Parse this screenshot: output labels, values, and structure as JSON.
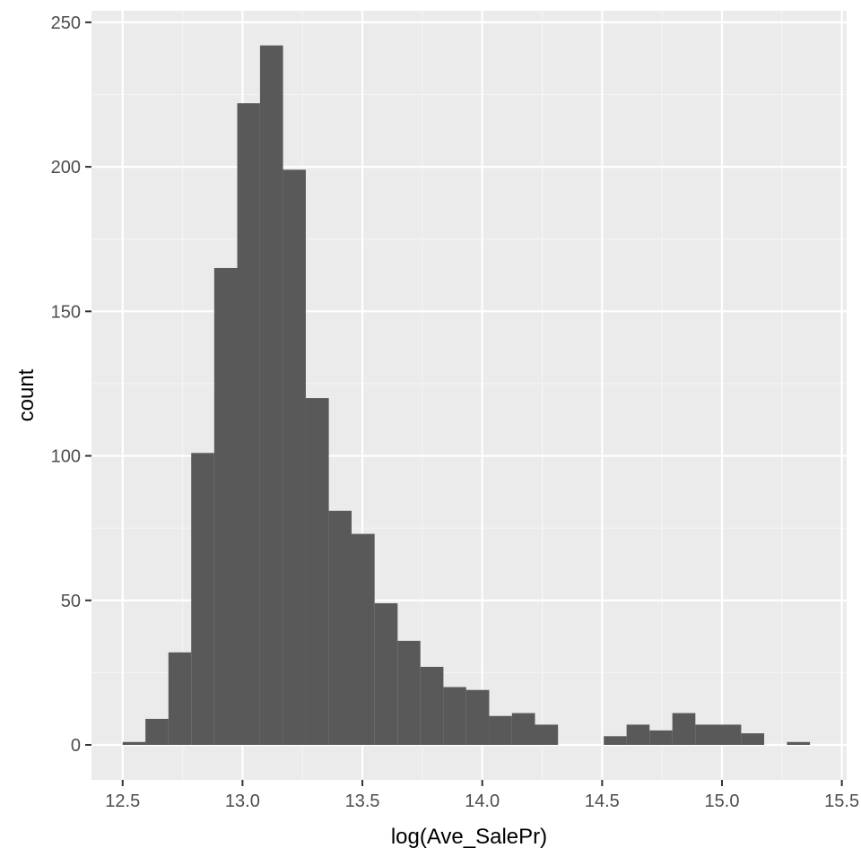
{
  "chart_data": {
    "type": "bar",
    "title": "",
    "xlabel": "log(Ave_SalePr)",
    "ylabel": "count",
    "xlim": [
      12.37,
      15.52
    ],
    "ylim": [
      -12.1,
      254
    ],
    "x_ticks": [
      12.5,
      13.0,
      13.5,
      14.0,
      14.5,
      15.0,
      15.5
    ],
    "x_tick_labels": [
      "12.5",
      "13.0",
      "13.5",
      "14.0",
      "14.5",
      "15.0",
      "15.5"
    ],
    "y_ticks": [
      0,
      50,
      100,
      150,
      200,
      250
    ],
    "y_tick_labels": [
      "0",
      "50",
      "100",
      "150",
      "200",
      "250"
    ],
    "grid": true,
    "legend": "none",
    "bin_width": 0.0955,
    "bins": [
      {
        "x_start": 12.5,
        "x_end": 12.595,
        "count": 1
      },
      {
        "x_start": 12.595,
        "x_end": 12.691,
        "count": 9
      },
      {
        "x_start": 12.691,
        "x_end": 12.786,
        "count": 32
      },
      {
        "x_start": 12.786,
        "x_end": 12.882,
        "count": 101
      },
      {
        "x_start": 12.882,
        "x_end": 12.978,
        "count": 165
      },
      {
        "x_start": 12.978,
        "x_end": 13.073,
        "count": 222
      },
      {
        "x_start": 13.073,
        "x_end": 13.169,
        "count": 242
      },
      {
        "x_start": 13.169,
        "x_end": 13.264,
        "count": 199
      },
      {
        "x_start": 13.264,
        "x_end": 13.36,
        "count": 120
      },
      {
        "x_start": 13.36,
        "x_end": 13.455,
        "count": 81
      },
      {
        "x_start": 13.455,
        "x_end": 13.551,
        "count": 73
      },
      {
        "x_start": 13.551,
        "x_end": 13.647,
        "count": 49
      },
      {
        "x_start": 13.647,
        "x_end": 13.742,
        "count": 36
      },
      {
        "x_start": 13.742,
        "x_end": 13.838,
        "count": 27
      },
      {
        "x_start": 13.838,
        "x_end": 13.933,
        "count": 20
      },
      {
        "x_start": 13.933,
        "x_end": 14.029,
        "count": 19
      },
      {
        "x_start": 14.029,
        "x_end": 14.124,
        "count": 10
      },
      {
        "x_start": 14.124,
        "x_end": 14.22,
        "count": 11
      },
      {
        "x_start": 14.22,
        "x_end": 14.316,
        "count": 7
      },
      {
        "x_start": 14.316,
        "x_end": 14.411,
        "count": 0
      },
      {
        "x_start": 14.411,
        "x_end": 14.507,
        "count": 0
      },
      {
        "x_start": 14.507,
        "x_end": 14.602,
        "count": 3
      },
      {
        "x_start": 14.602,
        "x_end": 14.698,
        "count": 7
      },
      {
        "x_start": 14.698,
        "x_end": 14.793,
        "count": 5
      },
      {
        "x_start": 14.793,
        "x_end": 14.889,
        "count": 11
      },
      {
        "x_start": 14.889,
        "x_end": 14.985,
        "count": 7
      },
      {
        "x_start": 14.985,
        "x_end": 15.08,
        "count": 7
      },
      {
        "x_start": 15.08,
        "x_end": 15.176,
        "count": 4
      },
      {
        "x_start": 15.176,
        "x_end": 15.271,
        "count": 0
      },
      {
        "x_start": 15.271,
        "x_end": 15.367,
        "count": 1
      }
    ]
  },
  "colors": {
    "panel_background": "#ebebeb",
    "grid_major": "#ffffff",
    "grid_minor": "#f5f5f5",
    "bar_fill": "#595959",
    "tick_mark": "#333333",
    "tick_label": "#4d4d4d",
    "axis_title": "#000000",
    "page_background": "#ffffff"
  }
}
